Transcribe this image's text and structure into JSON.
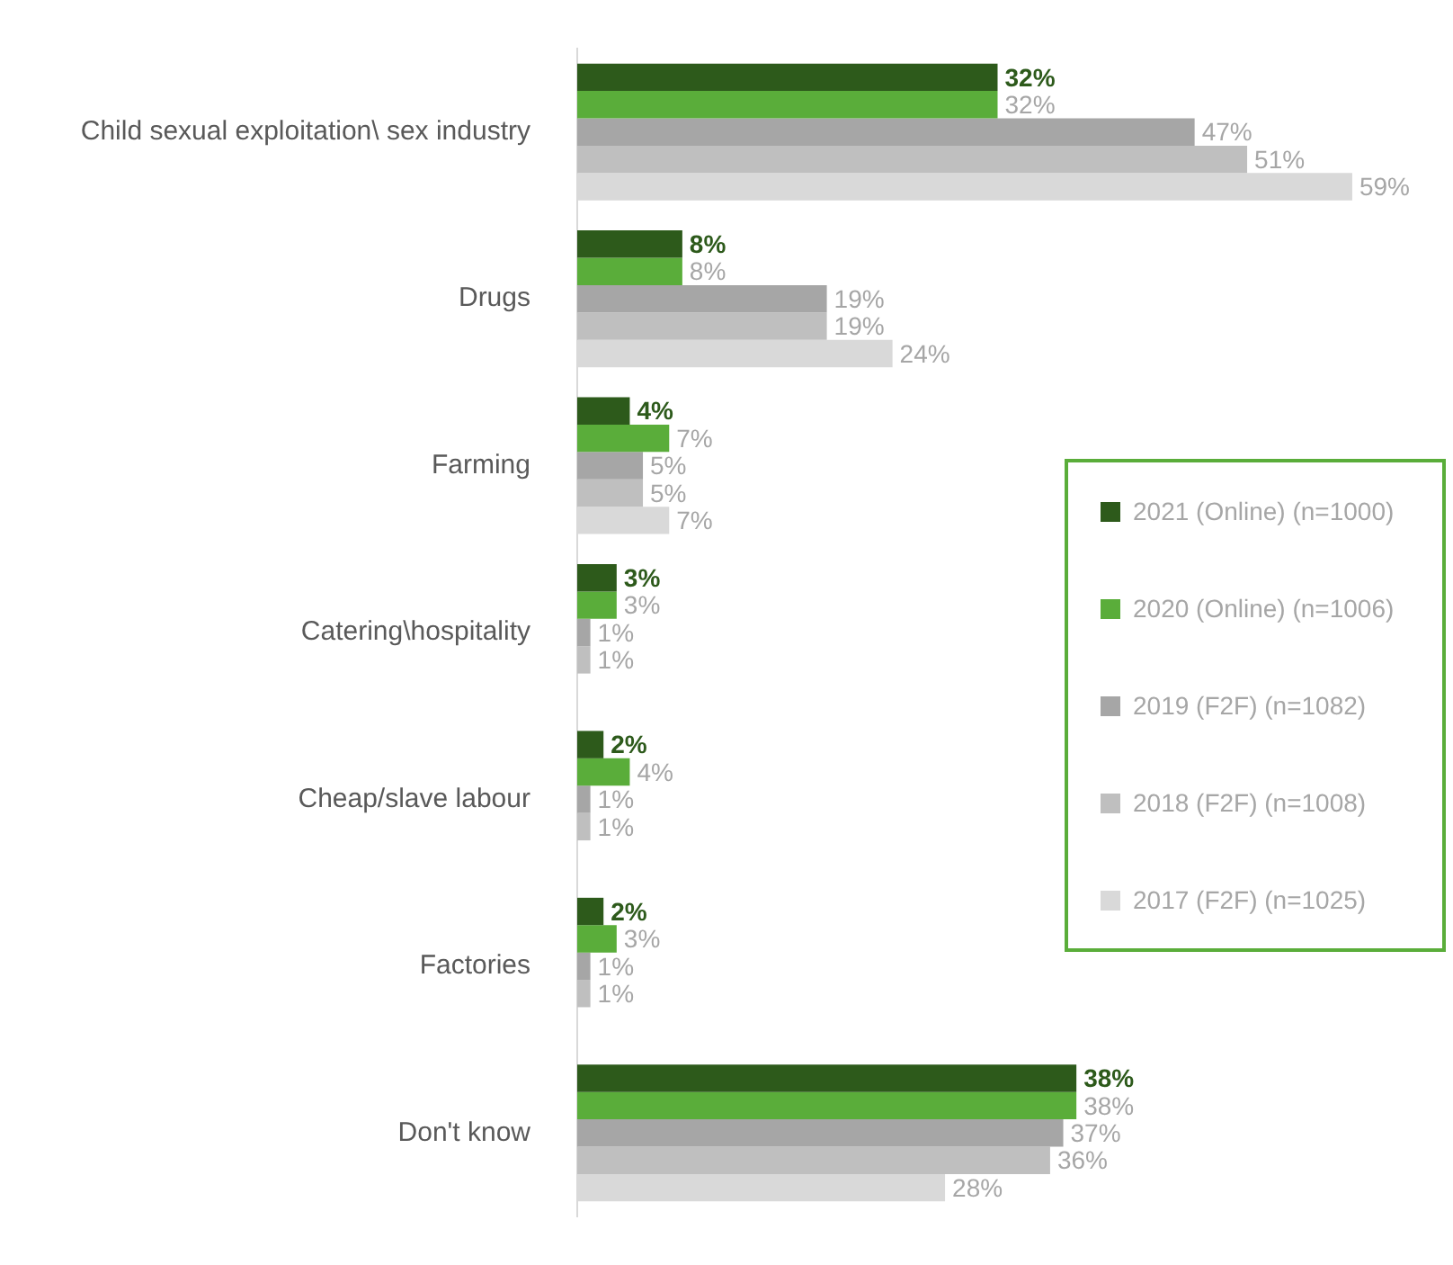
{
  "chart_data": {
    "type": "bar",
    "orientation": "horizontal",
    "legend": "right",
    "categories": [
      "Child sexual exploitation\\ sex industry",
      "Drugs",
      "Farming",
      "Catering\\hospitality",
      "Cheap/slave labour",
      "Factories",
      "Don't know"
    ],
    "series": [
      {
        "name": "2021 (Online) (n=1000)",
        "color": "#2d5a1b",
        "values": [
          32,
          8,
          4,
          3,
          2,
          2,
          38
        ],
        "value_labels": [
          "32%",
          "8%",
          "4%",
          "3%",
          "2%",
          "2%",
          "38%"
        ]
      },
      {
        "name": "2020 (Online) (n=1006)",
        "color": "#5aad3a",
        "values": [
          32,
          8,
          7,
          3,
          4,
          3,
          38
        ],
        "value_labels": [
          "32%",
          "8%",
          "7%",
          "3%",
          "4%",
          "3%",
          "38%"
        ]
      },
      {
        "name": "2019 (F2F) (n=1082)",
        "color": "#a6a6a6",
        "values": [
          47,
          19,
          5,
          1,
          1,
          1,
          37
        ],
        "value_labels": [
          "47%",
          "19%",
          "5%",
          "1%",
          "1%",
          "1%",
          "37%"
        ]
      },
      {
        "name": "2018 (F2F) (n=1008)",
        "color": "#bfbfbf",
        "values": [
          51,
          19,
          5,
          1,
          1,
          1,
          36
        ],
        "value_labels": [
          "51%",
          "19%",
          "5%",
          "1%",
          "1%",
          "1%",
          "36%"
        ]
      },
      {
        "name": "2017 (F2F) (n=1025)",
        "color": "#d9d9d9",
        "values": [
          59,
          24,
          7,
          null,
          null,
          null,
          28
        ],
        "value_labels": [
          "59%",
          "24%",
          "7%",
          null,
          null,
          null,
          "28%"
        ]
      }
    ]
  }
}
